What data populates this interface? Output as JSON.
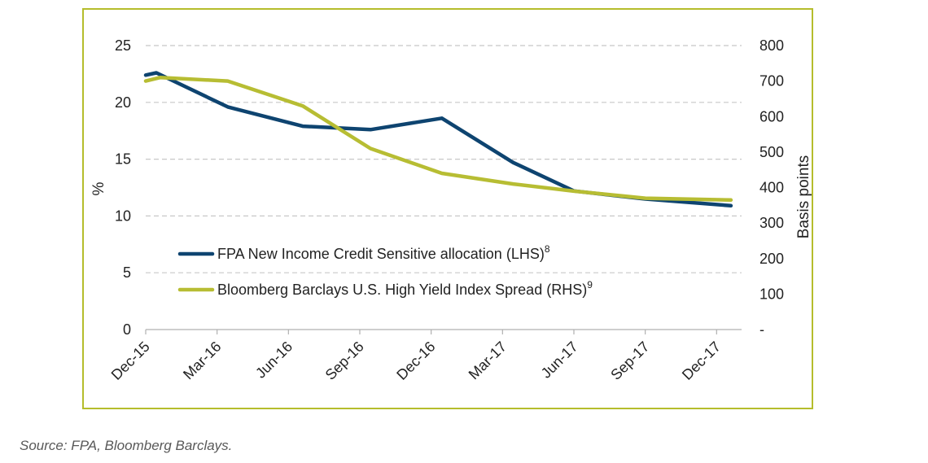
{
  "chart_data": {
    "type": "line",
    "categories": [
      "Dec-15",
      "Mar-16",
      "Jun-16",
      "Sep-16",
      "Dec-16",
      "Mar-17",
      "Jun-17",
      "Sep-17",
      "Dec-17"
    ],
    "left_axis": {
      "label": "%",
      "ylim": [
        0,
        25
      ],
      "ticks": [
        "0",
        "5",
        "10",
        "15",
        "20",
        "25"
      ]
    },
    "right_axis": {
      "label": "Basis points",
      "ylim": [
        0,
        800
      ],
      "ticks": [
        "-",
        "100",
        "200",
        "300",
        "400",
        "500",
        "600",
        "700",
        "800"
      ]
    },
    "series": [
      {
        "name": "FPA New Income Credit Sensitive allocation (LHS)",
        "footnote": "8",
        "axis": "left",
        "color": "#0e4470",
        "points": [
          {
            "x": 0.0,
            "y": 22.4
          },
          {
            "x": 0.15,
            "y": 22.6
          },
          {
            "x": 1.15,
            "y": 19.6
          },
          {
            "x": 2.2,
            "y": 17.9
          },
          {
            "x": 3.15,
            "y": 17.6
          },
          {
            "x": 4.15,
            "y": 18.6
          },
          {
            "x": 5.15,
            "y": 14.7
          },
          {
            "x": 6.0,
            "y": 12.2
          },
          {
            "x": 7.0,
            "y": 11.5
          },
          {
            "x": 8.2,
            "y": 10.9
          }
        ]
      },
      {
        "name": "Bloomberg Barclays U.S. High Yield Index Spread (RHS)",
        "footnote": "9",
        "axis": "right",
        "color": "#b7bd33",
        "points": [
          {
            "x": 0.0,
            "y": 700
          },
          {
            "x": 0.2,
            "y": 710
          },
          {
            "x": 1.15,
            "y": 700
          },
          {
            "x": 2.2,
            "y": 630
          },
          {
            "x": 3.15,
            "y": 510
          },
          {
            "x": 4.15,
            "y": 440
          },
          {
            "x": 5.15,
            "y": 410
          },
          {
            "x": 6.0,
            "y": 390
          },
          {
            "x": 7.0,
            "y": 370
          },
          {
            "x": 8.2,
            "y": 365
          }
        ]
      }
    ],
    "grid": "dashed horizontal",
    "legend": "lower-left inside plot"
  },
  "source": "Source: FPA, Bloomberg Barclays."
}
